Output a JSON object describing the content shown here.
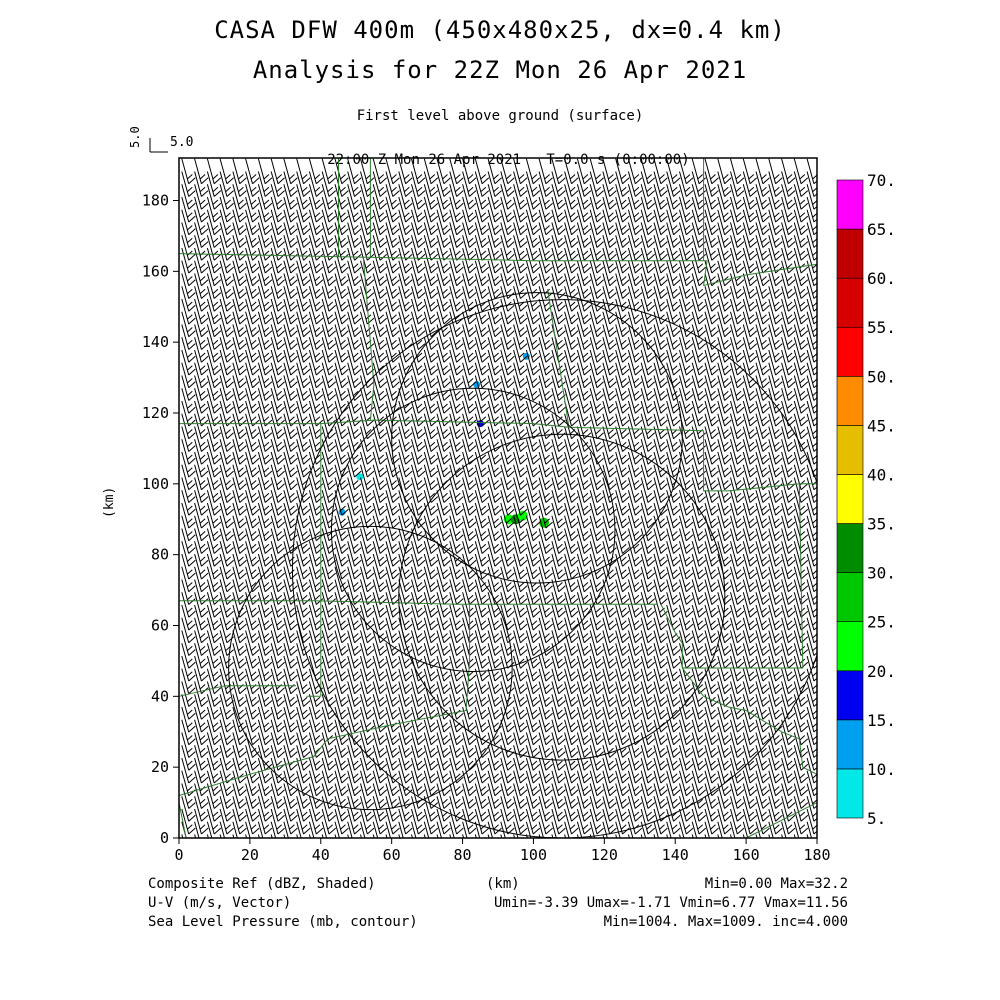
{
  "header": {
    "title_line1": "CASA DFW 400m (450x480x25, dx=0.4 km)",
    "title_line2": "Analysis for 22Z Mon 26 Apr 2021",
    "level": "First level above ground (surface)",
    "valid_time": "22:00 Z Mon 26 Apr 2021",
    "forecast_time": "T=0.0 s (0:00:00)",
    "ref_vector_value": "5.0",
    "ref_vector_label": "5.0"
  },
  "footer": {
    "field1_label": "Composite Ref (dBZ, Shaded)",
    "field1_stats": "Min=0.00 Max=32.2",
    "field2_label": "U-V (m/s, Vector)",
    "field2_stats": "Umin=-3.39 Umax=-1.71 Vmin=6.77 Vmax=11.56",
    "field3_label": "Sea Level Pressure (mb, contour)",
    "field3_stats": "Min=1004. Max=1009. inc=4.000",
    "x_axis_unit": "(km)"
  },
  "chart_data": {
    "type": "heatmap",
    "xlabel": "(km)",
    "ylabel": "(km)",
    "xlim": [
      0,
      180
    ],
    "ylim": [
      0,
      192
    ],
    "xticks": [
      0,
      20,
      40,
      60,
      80,
      100,
      120,
      140,
      160,
      180
    ],
    "yticks": [
      0,
      20,
      40,
      60,
      80,
      100,
      120,
      140,
      160,
      180
    ],
    "colorbar": {
      "levels": [
        "5.",
        "10.",
        "15.",
        "20.",
        "25.",
        "30.",
        "35.",
        "40.",
        "45.",
        "50.",
        "55.",
        "60.",
        "65.",
        "70."
      ],
      "colors": [
        "#00e8e8",
        "#00a0f0",
        "#0000f0",
        "#00ff00",
        "#00c800",
        "#008c00",
        "#ffff00",
        "#e6be00",
        "#ff8c00",
        "#ff0000",
        "#d60000",
        "#c00000",
        "#ff00ff"
      ]
    },
    "wind_vectors": {
      "u_mean": -2.5,
      "v_mean": 9.2,
      "x_spacing_km": 3.6,
      "y_spacing_km": 3.6
    },
    "reflectivity_cells": [
      {
        "x": 46,
        "y": 92,
        "dbz": 12
      },
      {
        "x": 51,
        "y": 102,
        "dbz": 8
      },
      {
        "x": 85,
        "y": 117,
        "dbz": 18
      },
      {
        "x": 84,
        "y": 128,
        "dbz": 10
      },
      {
        "x": 98,
        "y": 136,
        "dbz": 11
      },
      {
        "x": 93,
        "y": 90,
        "dbz": 24
      },
      {
        "x": 95,
        "y": 90,
        "dbz": 30
      },
      {
        "x": 97,
        "y": 91,
        "dbz": 22
      },
      {
        "x": 103,
        "y": 89,
        "dbz": 26
      }
    ],
    "range_rings": [
      {
        "cx": 54,
        "cy": 48,
        "r": 40
      },
      {
        "cx": 83,
        "cy": 87,
        "r": 40
      },
      {
        "cx": 108,
        "cy": 68,
        "r": 46
      },
      {
        "cx": 101,
        "cy": 113,
        "r": 41
      },
      {
        "cx": 108,
        "cy": 76,
        "r": 76
      }
    ],
    "county_lines": [
      [
        [
          0,
          165
        ],
        [
          53,
          164
        ],
        [
          100,
          163
        ],
        [
          149,
          163
        ]
      ],
      [
        [
          0,
          117
        ],
        [
          40,
          117
        ],
        [
          55,
          118
        ],
        [
          100,
          117
        ],
        [
          110,
          116
        ],
        [
          148,
          115
        ]
      ],
      [
        [
          0,
          67
        ],
        [
          38,
          67
        ],
        [
          78,
          66
        ],
        [
          135,
          66
        ]
      ],
      [
        [
          0,
          40
        ],
        [
          13,
          43
        ],
        [
          33,
          43
        ]
      ],
      [
        [
          36,
          40
        ],
        [
          40,
          40
        ],
        [
          40,
          117
        ]
      ],
      [
        [
          54,
          164
        ],
        [
          54,
          192
        ]
      ],
      [
        [
          45,
          164
        ],
        [
          45,
          192
        ]
      ],
      [
        [
          52,
          164
        ],
        [
          55,
          128
        ],
        [
          54,
          118
        ]
      ],
      [
        [
          82,
          67
        ],
        [
          82,
          50
        ],
        [
          81,
          36
        ],
        [
          60,
          32
        ],
        [
          42,
          28
        ],
        [
          38,
          23
        ],
        [
          20,
          18
        ],
        [
          0,
          12
        ]
      ],
      [
        [
          149,
          163
        ],
        [
          148,
          156
        ],
        [
          160,
          159
        ],
        [
          180,
          162
        ]
      ],
      [
        [
          148,
          163
        ],
        [
          148,
          192
        ]
      ],
      [
        [
          148,
          115
        ],
        [
          148,
          98
        ],
        [
          152,
          98
        ],
        [
          155,
          98
        ],
        [
          175,
          100
        ],
        [
          180,
          100
        ]
      ],
      [
        [
          175,
          100
        ],
        [
          176,
          48
        ],
        [
          160,
          48
        ],
        [
          142,
          48
        ],
        [
          142,
          55
        ],
        [
          140,
          58
        ],
        [
          136,
          66
        ]
      ],
      [
        [
          142,
          48
        ],
        [
          148,
          40
        ],
        [
          155,
          37
        ],
        [
          160,
          36
        ],
        [
          170,
          30
        ],
        [
          175,
          28
        ],
        [
          176,
          20
        ],
        [
          180,
          18
        ]
      ],
      [
        [
          180,
          10
        ],
        [
          170,
          5
        ],
        [
          160,
          0
        ]
      ],
      [
        [
          0,
          10
        ],
        [
          2,
          0
        ]
      ],
      [
        [
          110,
          116
        ],
        [
          104,
          155
        ]
      ]
    ]
  }
}
